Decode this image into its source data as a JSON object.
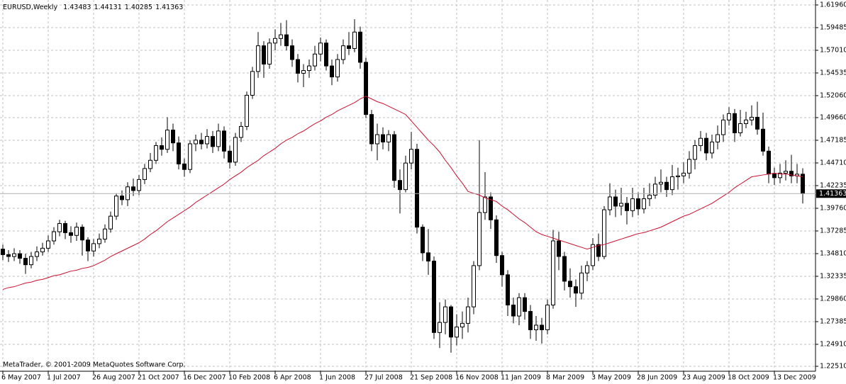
{
  "chart_data": {
    "type": "candlestick",
    "title": "EURUSD,Weekly",
    "credit": "MetaTrader, © 2001-2009 MetaQuotes Software Corp.",
    "categories": [
      "6 May 2007",
      null,
      null,
      null,
      null,
      null,
      null,
      null,
      "1 Jul 2007",
      null,
      null,
      null,
      null,
      null,
      null,
      null,
      "26 Aug 2007",
      null,
      null,
      null,
      null,
      null,
      null,
      null,
      "21 Oct 2007",
      null,
      null,
      null,
      null,
      null,
      null,
      null,
      "16 Dec 2007",
      null,
      null,
      null,
      null,
      null,
      null,
      null,
      "10 Feb 2008",
      null,
      null,
      null,
      null,
      null,
      null,
      null,
      "6 Apr 2008",
      null,
      null,
      null,
      null,
      null,
      null,
      null,
      "1 Jun 2008",
      null,
      null,
      null,
      null,
      null,
      null,
      null,
      "27 Jul 2008",
      null,
      null,
      null,
      null,
      null,
      null,
      null,
      "21 Sep 2008",
      null,
      null,
      null,
      null,
      null,
      null,
      null,
      "16 Nov 2008",
      null,
      null,
      null,
      null,
      null,
      null,
      null,
      "11 Jan 2009",
      null,
      null,
      null,
      null,
      null,
      null,
      null,
      "8 Mar 2009",
      null,
      null,
      null,
      null,
      null,
      null,
      null,
      "3 May 2009",
      null,
      null,
      null,
      null,
      null,
      null,
      null,
      "28 Jun 2009",
      null,
      null,
      null,
      null,
      null,
      null,
      null,
      "23 Aug 2009",
      null,
      null,
      null,
      null,
      null,
      null,
      null,
      "18 Oct 2009",
      null,
      null,
      null,
      null,
      null,
      null,
      null,
      "13 Dec 2009",
      null,
      null,
      null,
      null,
      null
    ],
    "open": [
      1.353,
      1.347,
      1.345,
      1.348,
      1.343,
      1.336,
      1.345,
      1.35,
      1.354,
      1.362,
      1.372,
      1.381,
      1.371,
      1.368,
      1.377,
      1.363,
      1.351,
      1.359,
      1.364,
      1.375,
      1.389,
      1.411,
      1.407,
      1.421,
      1.417,
      1.429,
      1.441,
      1.45,
      1.466,
      1.462,
      1.483,
      1.469,
      1.446,
      1.44,
      1.468,
      1.472,
      1.468,
      1.476,
      1.465,
      1.482,
      1.46,
      1.448,
      1.475,
      1.487,
      1.521,
      1.547,
      1.575,
      1.555,
      1.578,
      1.583,
      1.587,
      1.575,
      1.56,
      1.545,
      1.548,
      1.553,
      1.566,
      1.578,
      1.553,
      1.541,
      1.56,
      1.575,
      1.572,
      1.59,
      1.557,
      1.5,
      1.468,
      1.478,
      1.47,
      1.478,
      1.428,
      1.418,
      1.447,
      1.462,
      1.377,
      1.349,
      1.34,
      1.262,
      1.273,
      1.29,
      1.257,
      1.268,
      1.272,
      1.29,
      1.335,
      1.393,
      1.41,
      1.385,
      1.346,
      1.325,
      1.292,
      1.28,
      1.3,
      1.285,
      1.265,
      1.27,
      1.265,
      1.292,
      1.362,
      1.345,
      1.318,
      1.312,
      1.305,
      1.327,
      1.335,
      1.358,
      1.345,
      1.396,
      1.41,
      1.4,
      1.403,
      1.395,
      1.408,
      1.397,
      1.408,
      1.412,
      1.424,
      1.426,
      1.418,
      1.432,
      1.433,
      1.436,
      1.451,
      1.466,
      1.474,
      1.458,
      1.47,
      1.478,
      1.494,
      1.501,
      1.48,
      1.49,
      1.494,
      1.497,
      1.484,
      1.46,
      1.435,
      1.431,
      1.436,
      1.438,
      1.433,
      1.43483
    ],
    "high": [
      1.358,
      1.352,
      1.354,
      1.352,
      1.348,
      1.35,
      1.356,
      1.36,
      1.368,
      1.377,
      1.385,
      1.384,
      1.378,
      1.382,
      1.38,
      1.366,
      1.364,
      1.37,
      1.38,
      1.394,
      1.414,
      1.417,
      1.426,
      1.43,
      1.434,
      1.446,
      1.458,
      1.47,
      1.475,
      1.497,
      1.49,
      1.476,
      1.452,
      1.472,
      1.478,
      1.48,
      1.484,
      1.482,
      1.49,
      1.487,
      1.466,
      1.48,
      1.492,
      1.525,
      1.552,
      1.59,
      1.58,
      1.583,
      1.593,
      1.6,
      1.603,
      1.582,
      1.566,
      1.555,
      1.56,
      1.575,
      1.584,
      1.582,
      1.56,
      1.566,
      1.582,
      1.59,
      1.604,
      1.596,
      1.562,
      1.505,
      1.49,
      1.486,
      1.483,
      1.482,
      1.44,
      1.455,
      1.481,
      1.468,
      1.38,
      1.375,
      1.345,
      1.295,
      1.298,
      1.292,
      1.282,
      1.285,
      1.3,
      1.34,
      1.472,
      1.437,
      1.415,
      1.39,
      1.35,
      1.33,
      1.3,
      1.305,
      1.305,
      1.292,
      1.28,
      1.278,
      1.298,
      1.374,
      1.372,
      1.35,
      1.332,
      1.32,
      1.335,
      1.34,
      1.365,
      1.37,
      1.4,
      1.425,
      1.418,
      1.42,
      1.41,
      1.42,
      1.415,
      1.42,
      1.425,
      1.432,
      1.44,
      1.432,
      1.445,
      1.442,
      1.448,
      1.46,
      1.472,
      1.482,
      1.48,
      1.478,
      1.488,
      1.5,
      1.508,
      1.506,
      1.505,
      1.503,
      1.51,
      1.514,
      1.502,
      1.465,
      1.442,
      1.446,
      1.45,
      1.456,
      1.446,
      1.44131
    ],
    "low": [
      1.341,
      1.339,
      1.34,
      1.337,
      1.326,
      1.332,
      1.34,
      1.346,
      1.35,
      1.358,
      1.367,
      1.364,
      1.36,
      1.362,
      1.346,
      1.34,
      1.345,
      1.354,
      1.36,
      1.371,
      1.385,
      1.401,
      1.4,
      1.411,
      1.412,
      1.424,
      1.437,
      1.446,
      1.455,
      1.458,
      1.46,
      1.44,
      1.432,
      1.436,
      1.46,
      1.462,
      1.463,
      1.458,
      1.46,
      1.452,
      1.441,
      1.444,
      1.47,
      1.483,
      1.517,
      1.54,
      1.54,
      1.55,
      1.57,
      1.575,
      1.57,
      1.552,
      1.535,
      1.53,
      1.54,
      1.548,
      1.558,
      1.548,
      1.532,
      1.536,
      1.555,
      1.565,
      1.568,
      1.55,
      1.496,
      1.46,
      1.45,
      1.462,
      1.46,
      1.42,
      1.392,
      1.415,
      1.44,
      1.37,
      1.34,
      1.325,
      1.255,
      1.245,
      1.26,
      1.24,
      1.248,
      1.255,
      1.262,
      1.282,
      1.33,
      1.385,
      1.375,
      1.338,
      1.312,
      1.28,
      1.272,
      1.27,
      1.276,
      1.255,
      1.253,
      1.25,
      1.26,
      1.288,
      1.33,
      1.308,
      1.3,
      1.29,
      1.298,
      1.318,
      1.33,
      1.34,
      1.342,
      1.39,
      1.388,
      1.39,
      1.38,
      1.388,
      1.39,
      1.392,
      1.4,
      1.408,
      1.415,
      1.41,
      1.412,
      1.418,
      1.425,
      1.43,
      1.44,
      1.46,
      1.45,
      1.452,
      1.462,
      1.47,
      1.488,
      1.47,
      1.476,
      1.485,
      1.488,
      1.478,
      1.455,
      1.425,
      1.423,
      1.425,
      1.428,
      1.425,
      1.425,
      1.40285
    ],
    "close": [
      1.347,
      1.345,
      1.348,
      1.343,
      1.336,
      1.345,
      1.35,
      1.354,
      1.362,
      1.372,
      1.381,
      1.371,
      1.368,
      1.377,
      1.363,
      1.351,
      1.359,
      1.364,
      1.375,
      1.389,
      1.411,
      1.407,
      1.421,
      1.417,
      1.429,
      1.441,
      1.45,
      1.466,
      1.462,
      1.483,
      1.469,
      1.446,
      1.44,
      1.468,
      1.472,
      1.468,
      1.476,
      1.465,
      1.482,
      1.46,
      1.448,
      1.475,
      1.487,
      1.521,
      1.547,
      1.575,
      1.555,
      1.578,
      1.583,
      1.587,
      1.575,
      1.56,
      1.545,
      1.548,
      1.553,
      1.566,
      1.578,
      1.553,
      1.541,
      1.56,
      1.575,
      1.572,
      1.59,
      1.557,
      1.5,
      1.468,
      1.478,
      1.47,
      1.478,
      1.428,
      1.418,
      1.447,
      1.462,
      1.377,
      1.349,
      1.34,
      1.262,
      1.273,
      1.29,
      1.257,
      1.268,
      1.272,
      1.29,
      1.335,
      1.393,
      1.41,
      1.385,
      1.346,
      1.325,
      1.292,
      1.28,
      1.3,
      1.285,
      1.265,
      1.27,
      1.265,
      1.292,
      1.362,
      1.345,
      1.318,
      1.312,
      1.305,
      1.327,
      1.335,
      1.358,
      1.345,
      1.396,
      1.41,
      1.4,
      1.403,
      1.395,
      1.408,
      1.397,
      1.408,
      1.412,
      1.424,
      1.426,
      1.418,
      1.432,
      1.433,
      1.436,
      1.451,
      1.466,
      1.474,
      1.458,
      1.47,
      1.478,
      1.494,
      1.501,
      1.48,
      1.49,
      1.494,
      1.497,
      1.484,
      1.46,
      1.435,
      1.431,
      1.436,
      1.438,
      1.433,
      1.43483,
      1.41363
    ],
    "ma": {
      "color": "#c8102e",
      "values": [
        1.309,
        1.311,
        1.312,
        1.314,
        1.316,
        1.317,
        1.319,
        1.32,
        1.322,
        1.324,
        1.325,
        1.327,
        1.329,
        1.33,
        1.332,
        1.333,
        1.335,
        1.338,
        1.341,
        1.345,
        1.348,
        1.351,
        1.354,
        1.357,
        1.36,
        1.364,
        1.369,
        1.373,
        1.378,
        1.383,
        1.387,
        1.391,
        1.395,
        1.399,
        1.404,
        1.408,
        1.412,
        1.416,
        1.42,
        1.424,
        1.429,
        1.433,
        1.437,
        1.442,
        1.446,
        1.45,
        1.455,
        1.459,
        1.463,
        1.468,
        1.472,
        1.475,
        1.479,
        1.482,
        1.486,
        1.49,
        1.493,
        1.497,
        1.5,
        1.504,
        1.507,
        1.51,
        1.513,
        1.517,
        1.52,
        1.517,
        1.514,
        1.512,
        1.509,
        1.506,
        1.503,
        1.5,
        1.493,
        1.486,
        1.479,
        1.472,
        1.466,
        1.459,
        1.45,
        1.442,
        1.433,
        1.425,
        1.416,
        1.414,
        1.412,
        1.409,
        1.407,
        1.405,
        1.4,
        1.396,
        1.391,
        1.386,
        1.382,
        1.377,
        1.372,
        1.369,
        1.367,
        1.365,
        1.363,
        1.361,
        1.359,
        1.357,
        1.355,
        1.353,
        1.355,
        1.357,
        1.358,
        1.36,
        1.362,
        1.364,
        1.366,
        1.368,
        1.37,
        1.371,
        1.373,
        1.375,
        1.377,
        1.38,
        1.383,
        1.386,
        1.389,
        1.391,
        1.394,
        1.397,
        1.4,
        1.403,
        1.407,
        1.411,
        1.415,
        1.42,
        1.424,
        1.428,
        1.432,
        1.433,
        1.434,
        1.435,
        1.436,
        1.435,
        1.435,
        1.434,
        1.433,
        1.432
      ]
    },
    "up_color": "#ffffff",
    "down_color": "#000000",
    "ylim": [
      1.2197,
      1.625
    ],
    "yticks": [
      {
        "value": 1.6196,
        "label": "1.61960"
      },
      1.59485,
      {
        "value": 1.5701,
        "label": "1.57010"
      },
      1.54535,
      {
        "value": 1.5206,
        "label": "1.52060"
      },
      {
        "value": 1.4966,
        "label": "1.49660"
      },
      1.47185,
      {
        "value": 1.4471,
        "label": "1.44710"
      },
      1.42235,
      {
        "value": 1.3976,
        "label": "1.39760"
      },
      1.37285,
      {
        "value": 1.3481,
        "label": "1.34810"
      },
      1.32335,
      {
        "value": 1.2986,
        "label": "1.29860"
      },
      1.27385,
      {
        "value": 1.2491,
        "label": "1.24910"
      },
      {
        "value": 1.2251,
        "label": "1.22510"
      }
    ],
    "grid": true
  }
}
